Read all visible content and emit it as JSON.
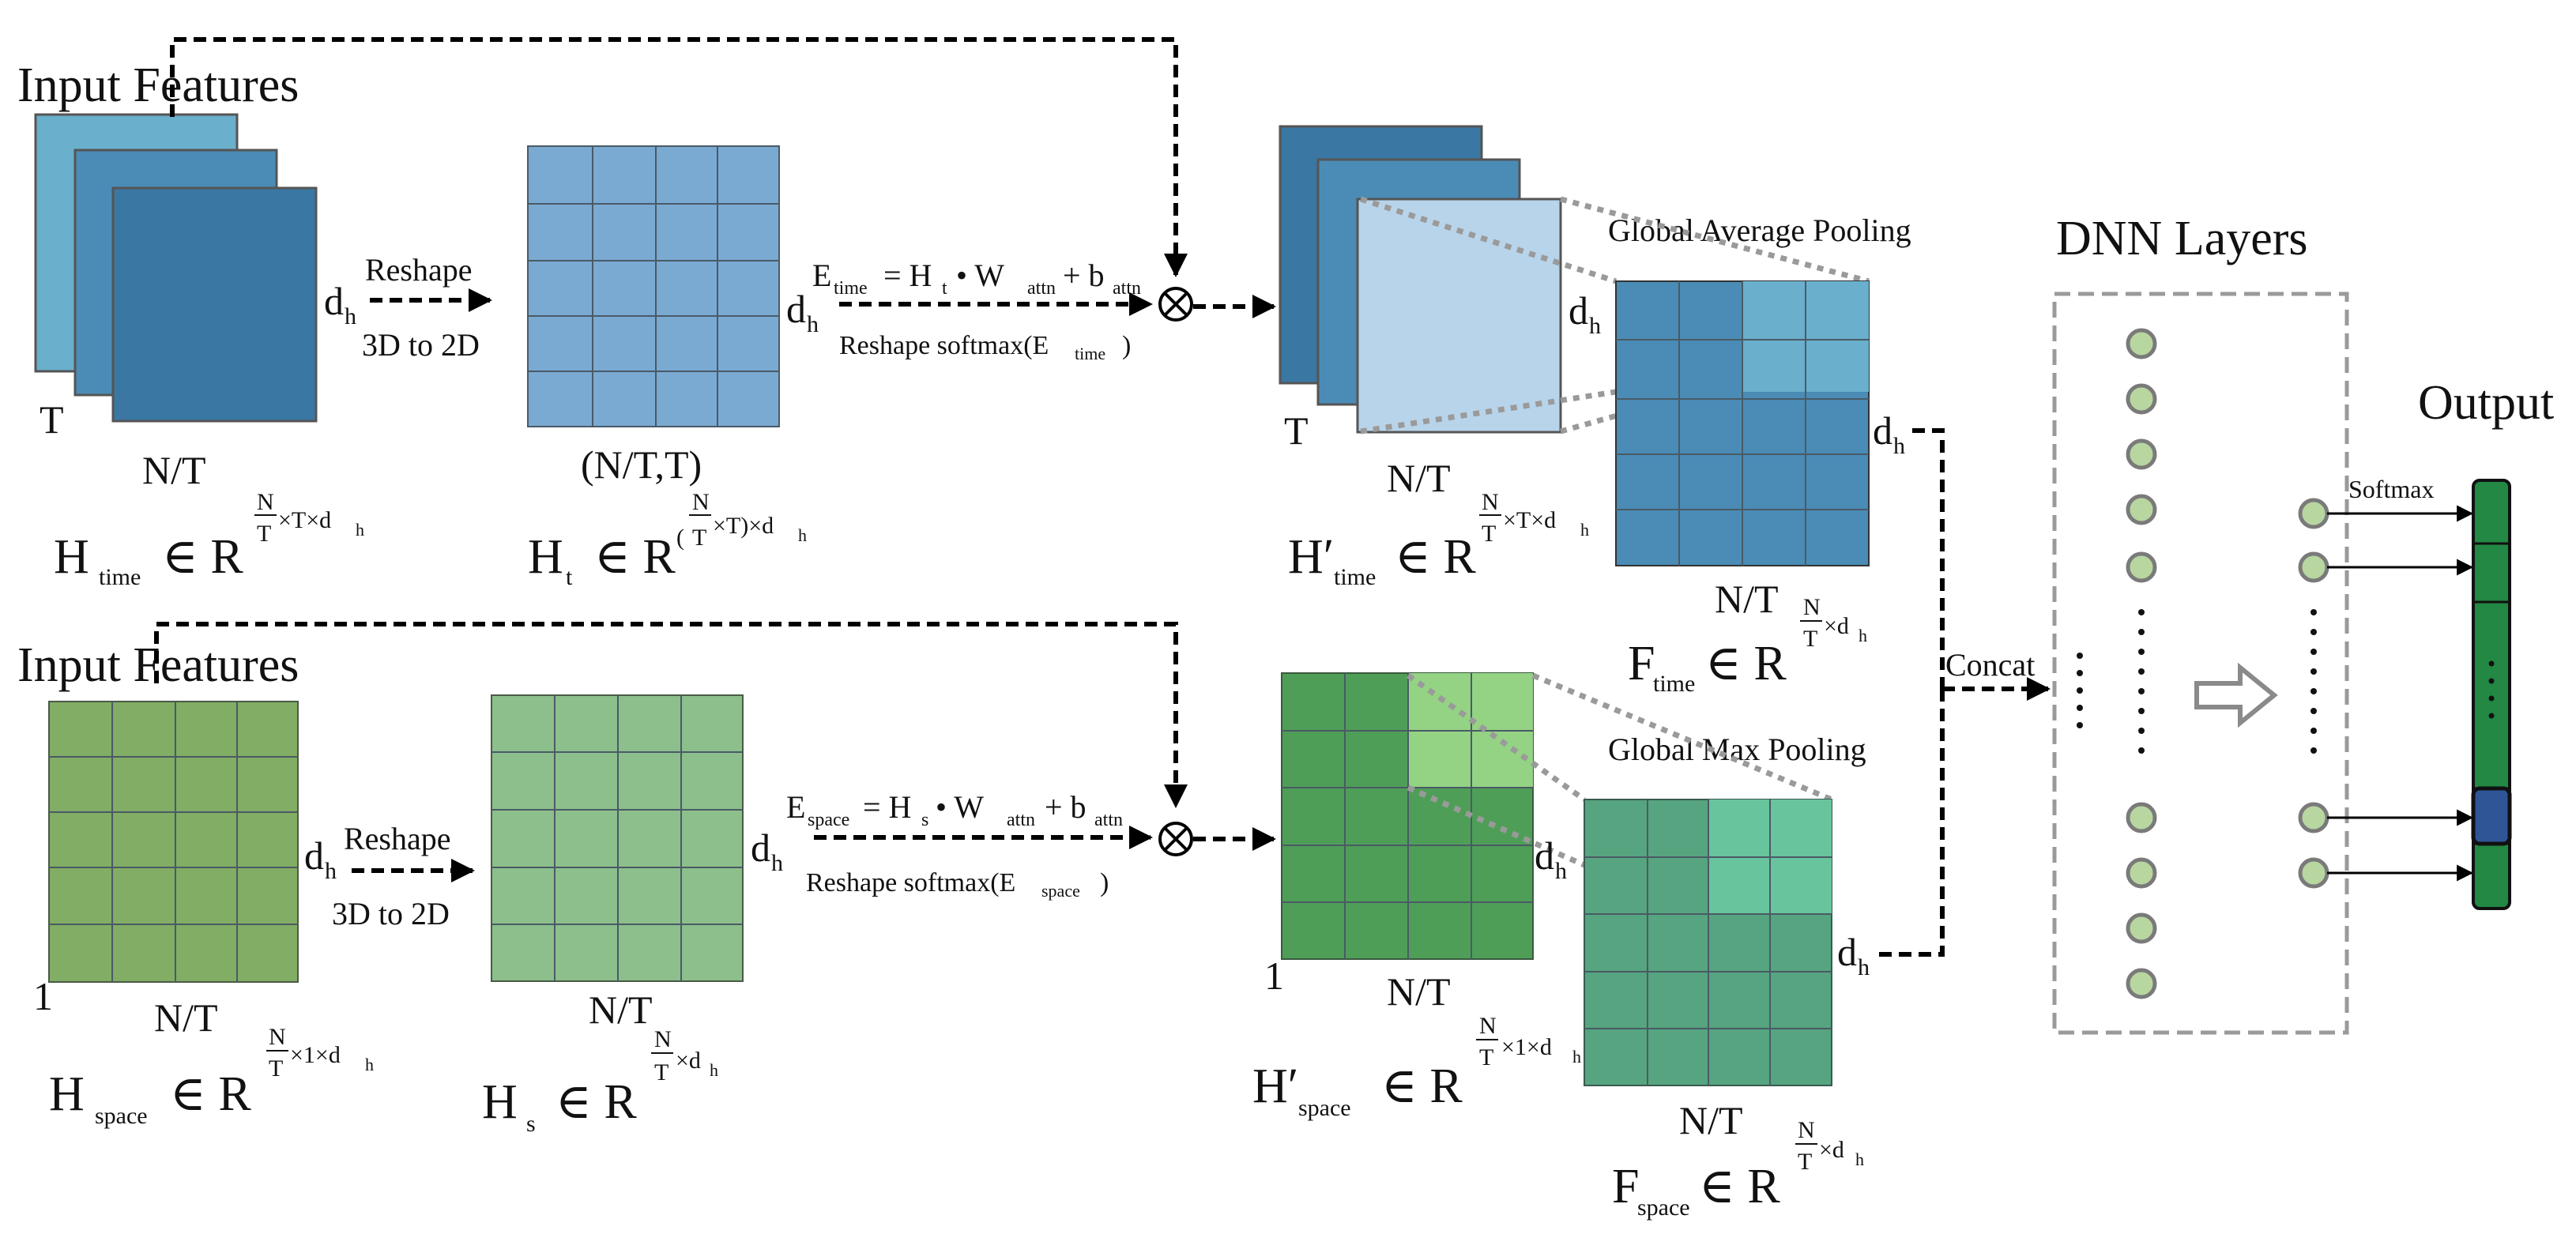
{
  "time_branch": {
    "input_title": "Input Features",
    "axis_t": "T",
    "axis_nt": "N/T",
    "dh": "d",
    "dh_sub": "h",
    "reshape": "Reshape",
    "reshape_3d2d": "3D to 2D",
    "ht_dims": "(N/T,T)",
    "h_time_label": "H",
    "h_time_sub": "time",
    "ht_label": "H",
    "ht_sub": "t",
    "e_time_eq": "E",
    "e_time_sub": "time",
    "eq_rest": "= H",
    "eq_t": "t",
    "eq_w": "• W",
    "eq_attn": "attn",
    "eq_b": "+ b",
    "reshape_softmax": "Reshape softmax(E",
    "reshape_softmax_sub": "time",
    "reshape_softmax_close": ")",
    "hprime_label": "H′",
    "hprime_sub": "time",
    "pool": "Global Average Pooling",
    "f_label": "F",
    "f_sub": "time"
  },
  "space_branch": {
    "input_title": "Input Features",
    "axis_one": "1",
    "axis_nt": "N/T",
    "dh": "d",
    "dh_sub": "h",
    "reshape": "Reshape",
    "reshape_3d2d": "3D to 2D",
    "h_space_label": "H",
    "h_space_sub": "space",
    "hs_label": "H",
    "hs_sub": "s",
    "e_space_eq": "E",
    "e_space_sub": "space",
    "eq_rest": "= H",
    "eq_s": "s",
    "eq_w": "• W",
    "eq_attn": "attn",
    "eq_b": "+ b",
    "reshape_softmax": "Reshape softmax(E",
    "reshape_softmax_sub": "space",
    "reshape_softmax_close": ")",
    "hprime_label": "H′",
    "hprime_sub": "space",
    "pool": "Global Max Pooling",
    "f_label": "F",
    "f_sub": "space"
  },
  "math": {
    "in": "∈ R",
    "n": "N",
    "t": "T",
    "x_t_x": "×T×d",
    "x_1_x": "×1×d",
    "x": "×d",
    "h": "h",
    "paren_open": "(",
    "paren_close": "×T)×d"
  },
  "right": {
    "concat": "Concat",
    "dnn_title": "DNN Layers",
    "output_title": "Output",
    "softmax": "Softmax"
  },
  "colors": {
    "time_back": "#6aafcc",
    "time_mid": "#4a8cb6",
    "time_front": "#3a77a2",
    "time_grid": "#7aaad2",
    "time_pale": "#b8d4ea",
    "space_in": "#82ad64",
    "space_grid": "#8cbf8c",
    "space_hprime": "#4f9e58",
    "space_light": "#94d284",
    "space_f": "#56a580",
    "space_f_light": "#68c49c",
    "out_green": "#228844",
    "out_blue": "#2f5597"
  }
}
